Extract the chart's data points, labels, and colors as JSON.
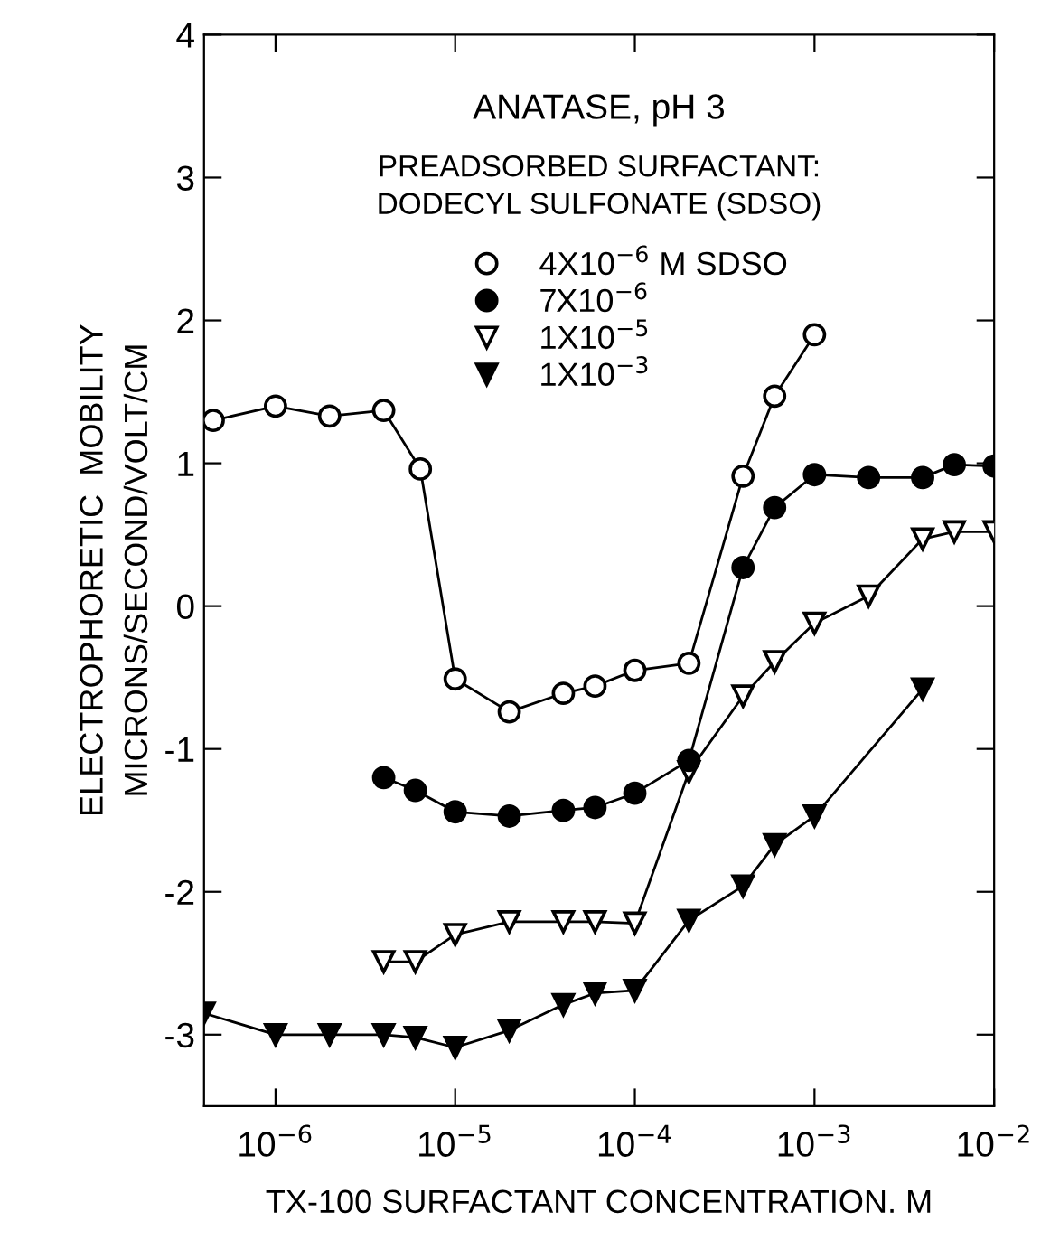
{
  "chart_data": {
    "type": "line",
    "xlabel": "TX-100 SURFACTANT CONCENTRATION. M",
    "ylabel": "ELECTROPHORETIC  MOBILITY\nMICRONS/SECOND/VOLT/CM",
    "annotations": [
      "ANATASE, pH 3",
      "PREADSORBED SURFACTANT:",
      "DODECYL SULFONATE (SDSO)"
    ],
    "log": "x",
    "xlim": [
      4e-07,
      0.01
    ],
    "xticks": [
      {
        "value": 1e-06,
        "label": "10$^{−6}$"
      },
      {
        "value": 1e-05,
        "label": "10$^{−5}$"
      },
      {
        "value": 0.0001,
        "label": "10$^{−4}$"
      },
      {
        "value": 0.001,
        "label": "10$^{−3}$"
      },
      {
        "value": 0.01,
        "label": "10$^{−2}$"
      }
    ],
    "ylim": [
      -3.5,
      4
    ],
    "yticks": [
      -3,
      -2,
      -1,
      0,
      1,
      2,
      3,
      4
    ],
    "grid": false,
    "legend": "top",
    "line_style": "solid",
    "series": [
      {
        "name": "4X10$^{−6}$ M SDSO",
        "color": "#000000",
        "marker": "circle",
        "x": [
          4.5e-07,
          1e-06,
          2e-06,
          4e-06,
          6.4e-06,
          1e-05,
          2e-05,
          4e-05,
          6e-05,
          0.0001,
          0.0002,
          0.0004,
          0.0006,
          0.001
        ],
        "values": [
          1.3,
          1.4,
          1.33,
          1.37,
          0.96,
          -0.51,
          -0.74,
          -0.61,
          -0.56,
          -0.45,
          -0.4,
          0.91,
          1.47,
          1.9
        ]
      },
      {
        "name": "7X10$^{−6}$",
        "color": "#000000",
        "marker": "circle",
        "x": [
          4e-06,
          6e-06,
          1e-05,
          2e-05,
          4e-05,
          6e-05,
          0.0001,
          0.0002,
          0.0004,
          0.0006,
          0.001,
          0.002,
          0.004,
          0.006,
          0.01
        ],
        "values": [
          -1.2,
          -1.29,
          -1.44,
          -1.47,
          -1.43,
          -1.41,
          -1.31,
          -1.08,
          0.27,
          0.69,
          0.92,
          0.9,
          0.9,
          0.99,
          0.98
        ]
      },
      {
        "name": "1X10$^{−5}$",
        "color": "#000000",
        "marker": "triangle",
        "x": [
          4e-06,
          6e-06,
          1e-05,
          2e-05,
          4e-05,
          6e-05,
          0.0001,
          0.0002,
          0.0004,
          0.0006,
          0.001,
          0.002,
          0.004,
          0.006,
          0.01
        ],
        "values": [
          -2.49,
          -2.49,
          -2.3,
          -2.21,
          -2.21,
          -2.21,
          -2.22,
          -1.16,
          -0.63,
          -0.39,
          -0.12,
          0.07,
          0.47,
          0.52,
          0.52
        ]
      },
      {
        "name": "1X10$^{−3}$",
        "color": "#000000",
        "marker": "triangle",
        "x": [
          4e-07,
          1e-06,
          2e-06,
          4e-06,
          6e-06,
          1e-05,
          2e-05,
          4e-05,
          6e-05,
          0.0001,
          0.0002,
          0.0004,
          0.0006,
          0.001,
          0.004
        ],
        "values": [
          -2.85,
          -3.0,
          -3.0,
          -3.0,
          -3.02,
          -3.09,
          -2.97,
          -2.79,
          -2.71,
          -2.69,
          -2.2,
          -1.96,
          -1.67,
          -1.47,
          -0.58
        ]
      }
    ]
  }
}
